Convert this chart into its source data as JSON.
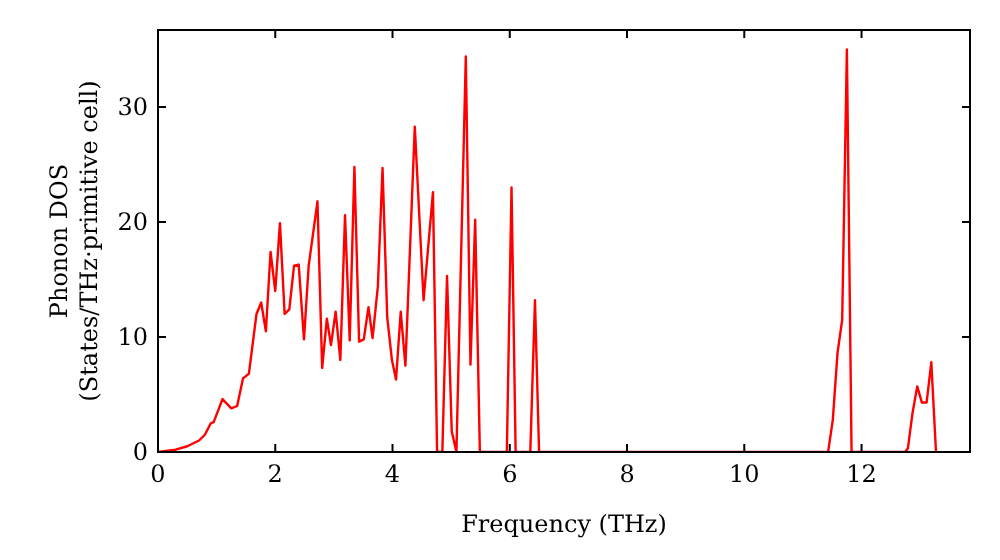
{
  "chart_data": {
    "type": "line",
    "xlabel": "Frequency (THz)",
    "ylabel": "Phonon DOS\n(States/THz·primitive cell)",
    "xlim": [
      0,
      13.85
    ],
    "ylim": [
      0,
      36.7
    ],
    "xticks": [
      0,
      2,
      4,
      6,
      8,
      10,
      12
    ],
    "yticks": [
      0,
      10,
      20,
      30
    ],
    "grid": false,
    "marker": "none",
    "line_style": "solid",
    "series": [
      {
        "color": "#ff0000",
        "x": [
          0,
          0.3,
          0.5,
          0.7,
          0.8,
          0.9,
          0.95,
          1.1,
          1.25,
          1.35,
          1.45,
          1.55,
          1.68,
          1.76,
          1.84,
          1.92,
          2.0,
          2.08,
          2.16,
          2.24,
          2.32,
          2.4,
          2.49,
          2.57,
          2.72,
          2.8,
          2.88,
          2.95,
          3.03,
          3.11,
          3.19,
          3.27,
          3.35,
          3.43,
          3.51,
          3.59,
          3.66,
          3.75,
          3.83,
          3.91,
          3.99,
          4.06,
          4.14,
          4.22,
          4.38,
          4.53,
          4.69,
          4.76,
          4.85,
          4.93,
          5.01,
          5.09,
          5.25,
          5.33,
          5.41,
          5.49,
          5.95,
          6.03,
          6.1,
          6.35,
          6.43,
          6.5,
          11.43,
          11.51,
          11.59,
          11.67,
          11.75,
          11.83,
          12.74,
          12.79,
          12.87,
          12.95,
          13.03,
          13.11,
          13.19,
          13.27
        ],
        "values": [
          0,
          0.2,
          0.5,
          1,
          1.5,
          2.5,
          2.6,
          4.6,
          3.8,
          4,
          6.4,
          6.8,
          12,
          13,
          10.5,
          17.4,
          14,
          19.9,
          12,
          12.4,
          16.2,
          16.3,
          9.8,
          16.2,
          21.8,
          7.3,
          11.6,
          9.3,
          12.2,
          8,
          20.6,
          9.7,
          24.8,
          9.6,
          9.8,
          12.6,
          9.9,
          14.4,
          24.7,
          11.7,
          8,
          6.3,
          12.2,
          7.5,
          28.3,
          13.2,
          22.6,
          0,
          0,
          15.3,
          1.8,
          0,
          34.4,
          7.6,
          20.2,
          0,
          0,
          23,
          0,
          0,
          13.2,
          0,
          0,
          2.8,
          8.6,
          11.5,
          35,
          0,
          0,
          0.3,
          3.4,
          5.7,
          4.3,
          4.3,
          7.8,
          0
        ]
      }
    ]
  }
}
